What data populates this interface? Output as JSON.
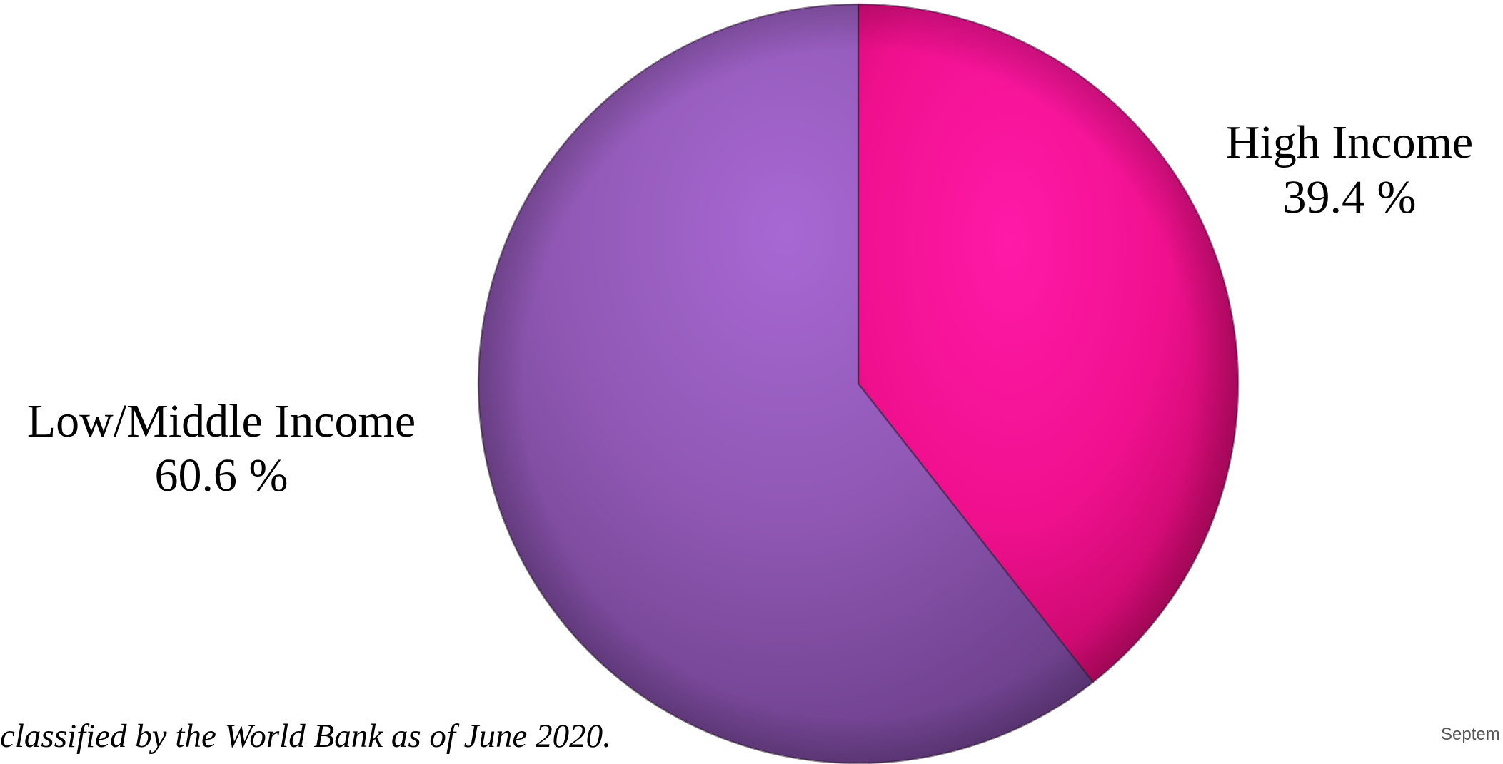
{
  "chart_data": {
    "type": "pie",
    "slices": [
      {
        "label": "High Income",
        "value": 39.4,
        "value_text": "39.4 %",
        "color": "#ff1493"
      },
      {
        "label": "Low/Middle Income",
        "value": 60.6,
        "value_text": "60.6 %",
        "color": "#a066cc"
      }
    ],
    "start_angle_deg": 0,
    "direction": "clockwise"
  },
  "footnote": "classified by the World Bank as of June 2020.",
  "date_fragment": "Septem"
}
